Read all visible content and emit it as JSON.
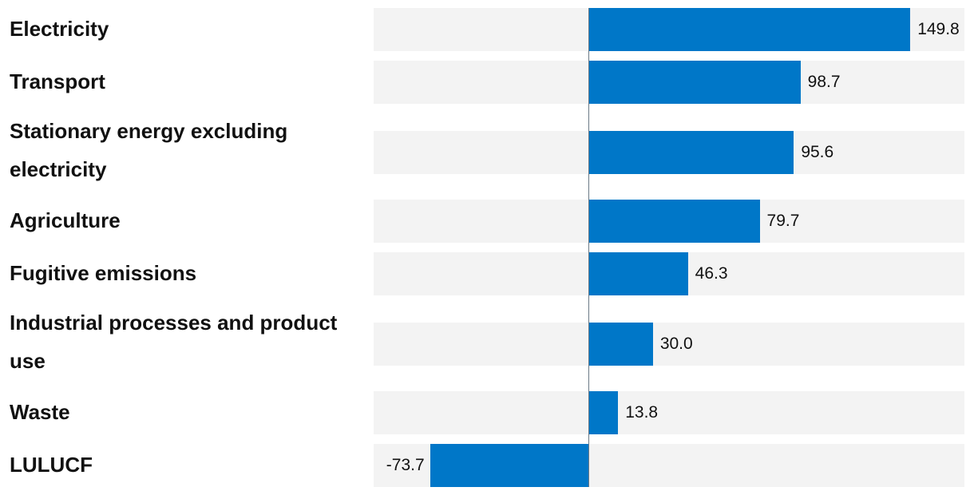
{
  "chart_data": {
    "type": "bar",
    "orientation": "horizontal",
    "title": "",
    "xlabel": "",
    "ylabel": "",
    "categories": [
      "Electricity",
      "Transport",
      "Stationary energy excluding electricity",
      "Agriculture",
      "Fugitive emissions",
      "Industrial processes and product use",
      "Waste",
      "LULUCF"
    ],
    "values": [
      149.8,
      98.7,
      95.6,
      79.7,
      46.3,
      30.0,
      13.8,
      -73.7
    ],
    "value_labels": [
      "149.8",
      "98.7",
      "95.6",
      "79.7",
      "46.3",
      "30.0",
      "13.8",
      "-73.7"
    ],
    "xlim": [
      -100,
      175
    ],
    "grid": false,
    "legend": "none"
  },
  "colors": {
    "bar": "#0077c8",
    "track": "#f3f3f3",
    "axis": "#6b7a86",
    "text": "#111111"
  }
}
